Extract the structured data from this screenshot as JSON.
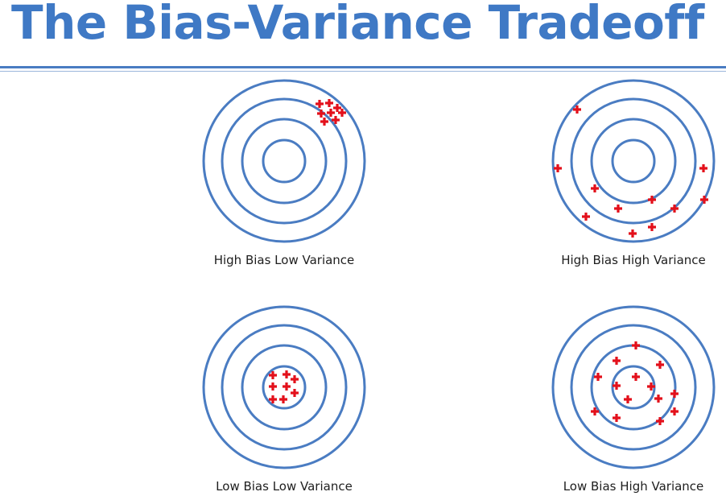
{
  "title": "The Bias-Variance Tradeoff",
  "colors": {
    "title": "#3f79c5",
    "ring": "#4a7cc2",
    "marker": "#e3101b",
    "rule": "#4a7cc2"
  },
  "marker_icon": "red-cross-marker-icon",
  "panels": [
    {
      "id": "hblv",
      "caption": "High Bias Low Variance"
    },
    {
      "id": "hbhv",
      "caption": "High Bias High Variance"
    },
    {
      "id": "lblv",
      "caption": "Low Bias Low Variance"
    },
    {
      "id": "lbhv",
      "caption": "Low Bias High Variance"
    }
  ]
}
